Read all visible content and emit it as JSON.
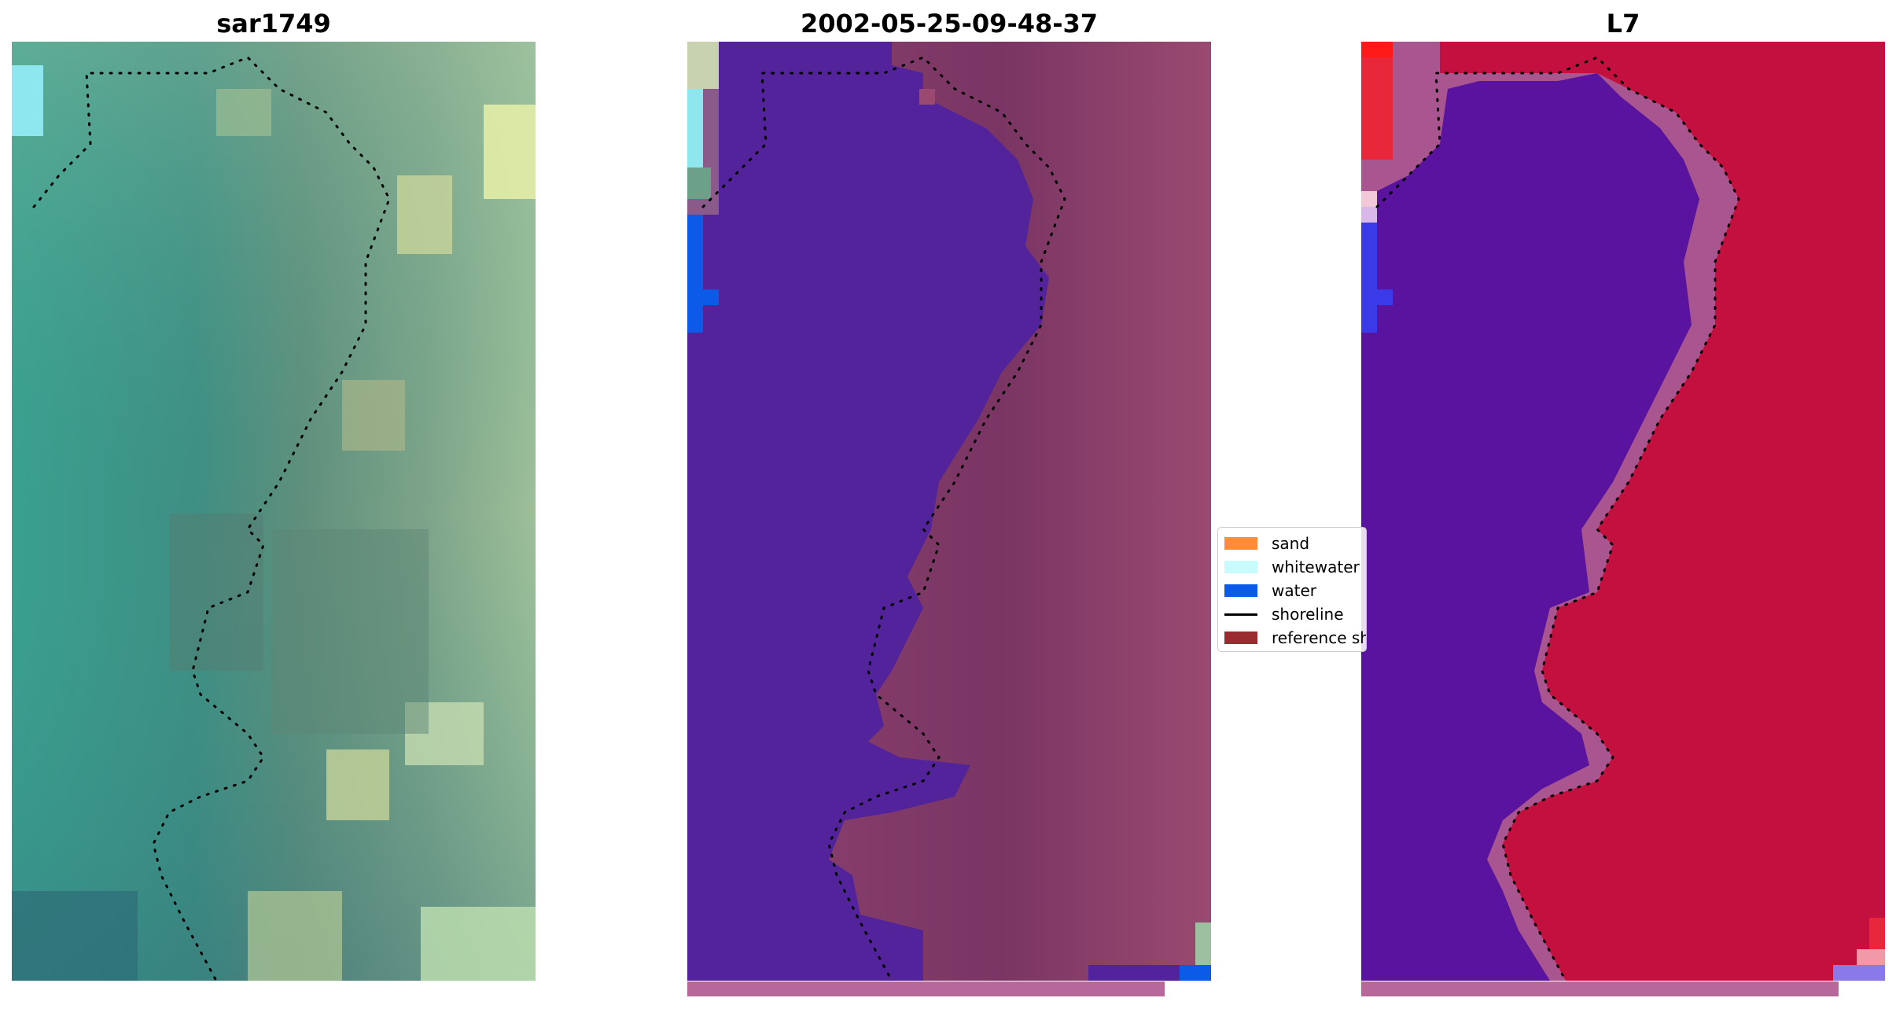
{
  "panels": [
    {
      "title": "sar1749"
    },
    {
      "title": "2002-05-25-09-48-37"
    },
    {
      "title": "L7"
    }
  ],
  "legend": {
    "items": [
      {
        "label": "sand",
        "color": "#ff8c3a"
      },
      {
        "label": "whitewater",
        "color": "#c8fcfc"
      },
      {
        "label": "water",
        "color": "#0b5ae8"
      },
      {
        "label": "shoreline",
        "color": "#000000"
      },
      {
        "label": "reference shoreline",
        "color": "#9a2b30"
      }
    ]
  },
  "colors": {
    "water_class": "#52239a",
    "strip": "#b8679a",
    "shoreline_dots": "#000000"
  }
}
